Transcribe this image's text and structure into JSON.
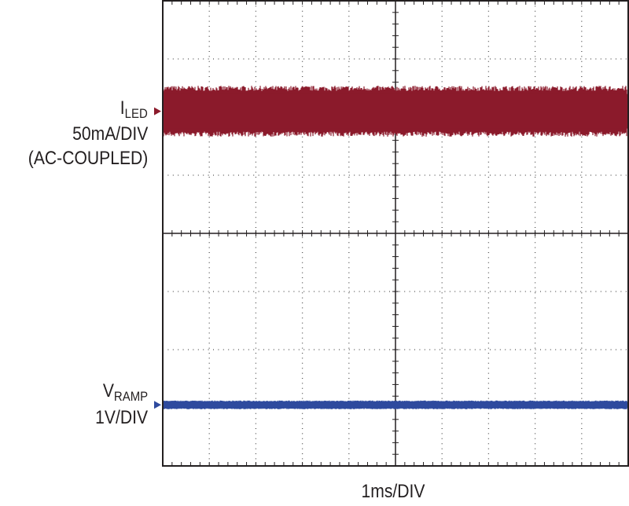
{
  "chart_data": {
    "type": "line",
    "xlabel": "1ms/DIV",
    "grid": true,
    "divisions": {
      "x": 10,
      "y": 8
    },
    "series": [
      {
        "label_main": "I",
        "label_sub": "LED",
        "scale": "50mA/DIV",
        "coupling": "(AC-COUPLED)",
        "color": "#8b1a2b",
        "center_div": 6.1,
        "noise_band_div": 0.7
      },
      {
        "label_main": "V",
        "label_sub": "RAMP",
        "scale": "1V/DIV",
        "color": "#2e4a9e",
        "center_div": 1.05,
        "noise_band_div": 0.12
      }
    ]
  }
}
